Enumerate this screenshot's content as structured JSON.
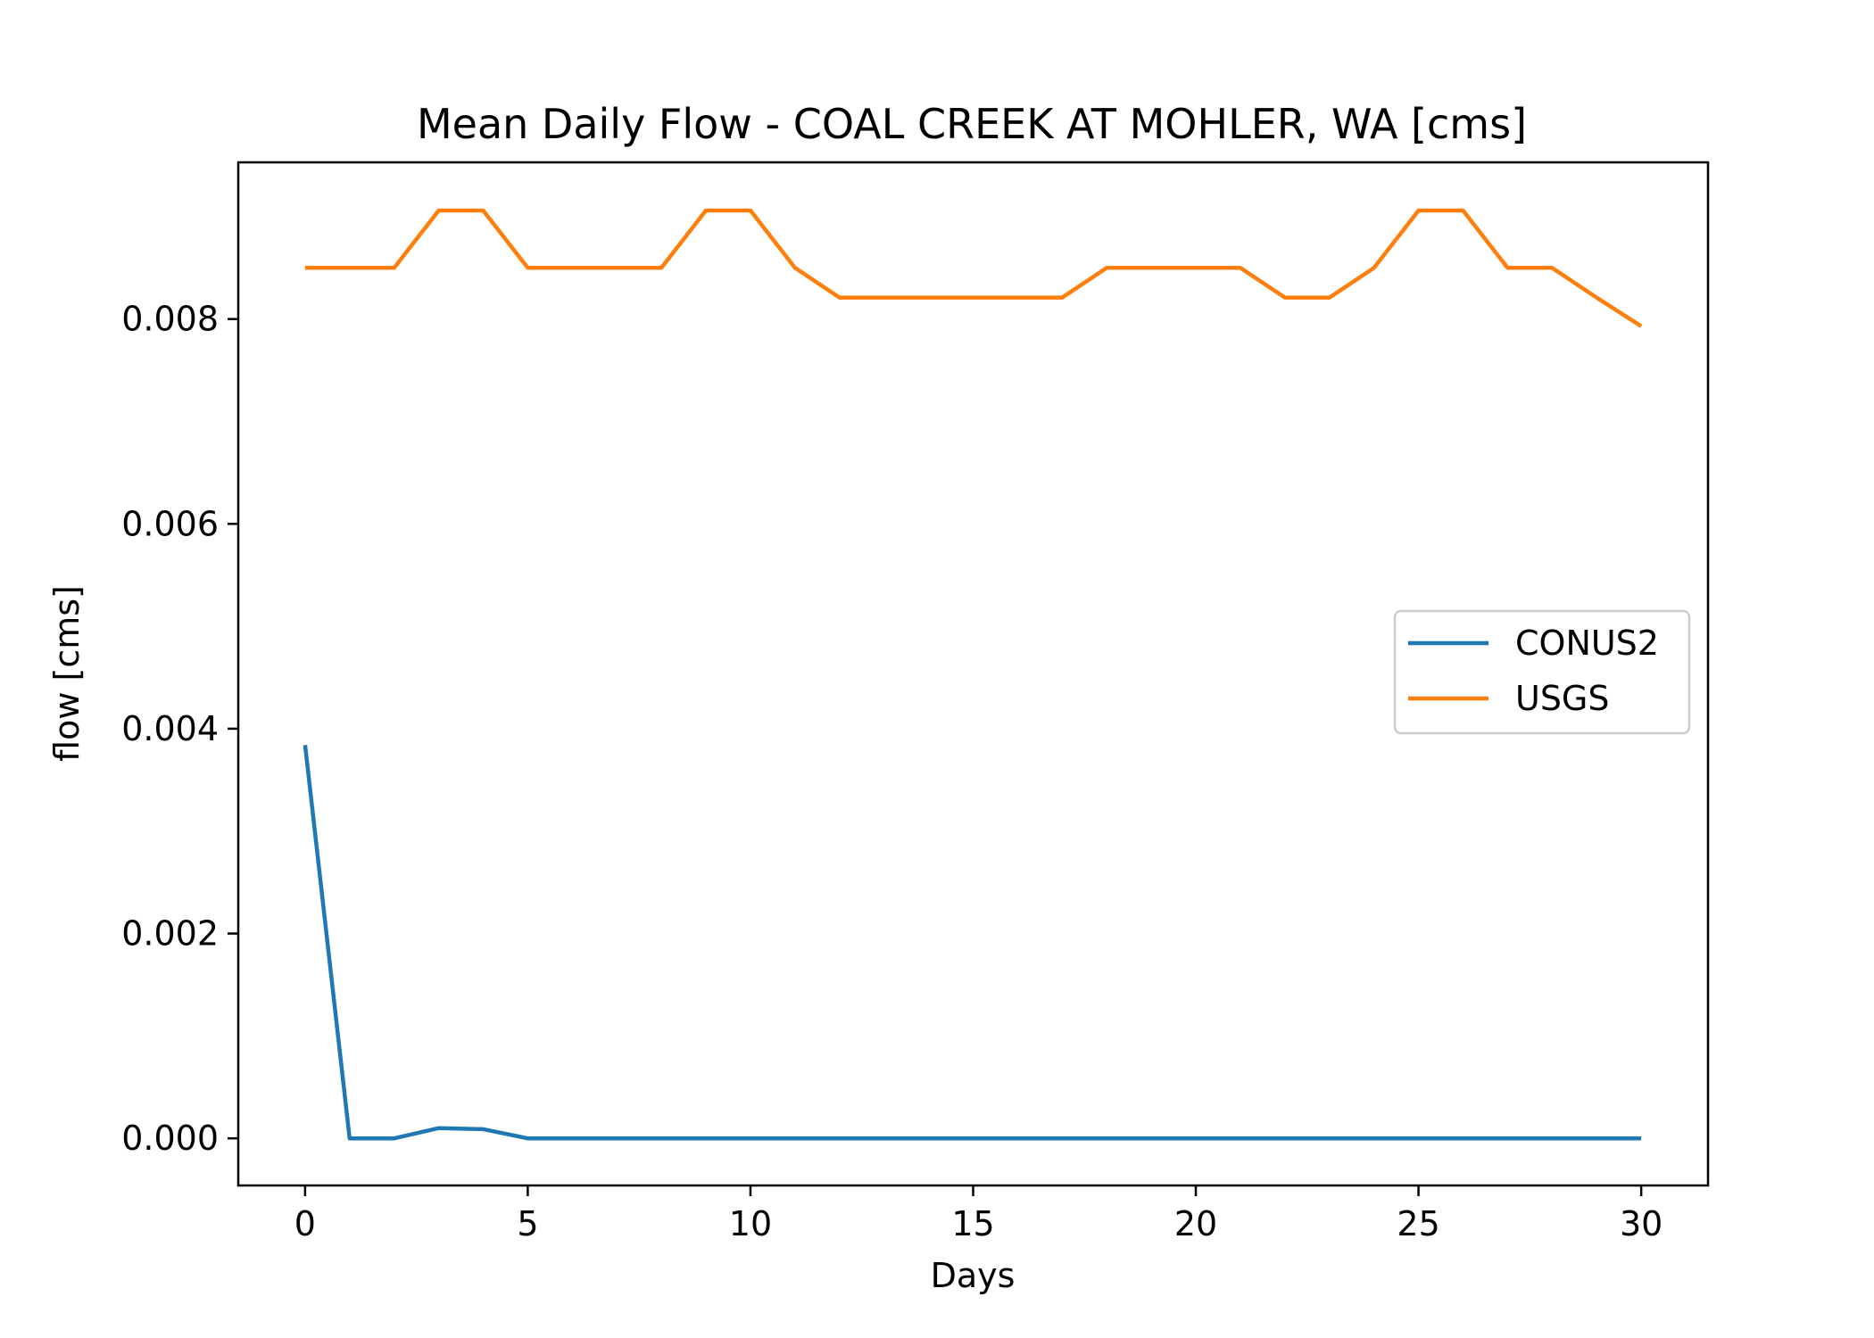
{
  "chart_data": {
    "type": "line",
    "title": "Mean Daily Flow - COAL CREEK AT MOHLER, WA [cms]",
    "xlabel": "Days",
    "ylabel": "flow [cms]",
    "xlim": [
      -1.5,
      31.5
    ],
    "ylim": [
      -0.00046,
      0.00953
    ],
    "x_ticks": [
      0,
      5,
      10,
      15,
      20,
      25,
      30
    ],
    "y_ticks": [
      0.0,
      0.002,
      0.004,
      0.006,
      0.008
    ],
    "x_tick_labels": [
      "0",
      "5",
      "10",
      "15",
      "20",
      "25",
      "30"
    ],
    "y_tick_labels": [
      "0.000",
      "0.002",
      "0.004",
      "0.006",
      "0.008"
    ],
    "grid": false,
    "legend_position": "center-right",
    "x": [
      0,
      1,
      2,
      3,
      4,
      5,
      6,
      7,
      8,
      9,
      10,
      11,
      12,
      13,
      14,
      15,
      16,
      17,
      18,
      19,
      20,
      21,
      22,
      23,
      24,
      25,
      26,
      27,
      28,
      29,
      30
    ],
    "series": [
      {
        "name": "CONUS2",
        "color": "#1f77b4",
        "values": [
          0.00384,
          0.0,
          0.0,
          0.0001,
          9e-05,
          0.0,
          0.0,
          0.0,
          0.0,
          0.0,
          0.0,
          0.0,
          0.0,
          0.0,
          0.0,
          0.0,
          0.0,
          0.0,
          0.0,
          0.0,
          0.0,
          0.0,
          0.0,
          0.0,
          0.0,
          0.0,
          0.0,
          0.0,
          0.0,
          0.0,
          0.0
        ]
      },
      {
        "name": "USGS",
        "color": "#ff7f0e",
        "values": [
          0.0085,
          0.0085,
          0.0085,
          0.00906,
          0.00906,
          0.0085,
          0.0085,
          0.0085,
          0.0085,
          0.00906,
          0.00906,
          0.0085,
          0.00821,
          0.00821,
          0.00821,
          0.00821,
          0.00821,
          0.00821,
          0.0085,
          0.0085,
          0.0085,
          0.0085,
          0.00821,
          0.00821,
          0.0085,
          0.00906,
          0.00906,
          0.0085,
          0.0085,
          0.00821,
          0.00793
        ]
      }
    ]
  }
}
